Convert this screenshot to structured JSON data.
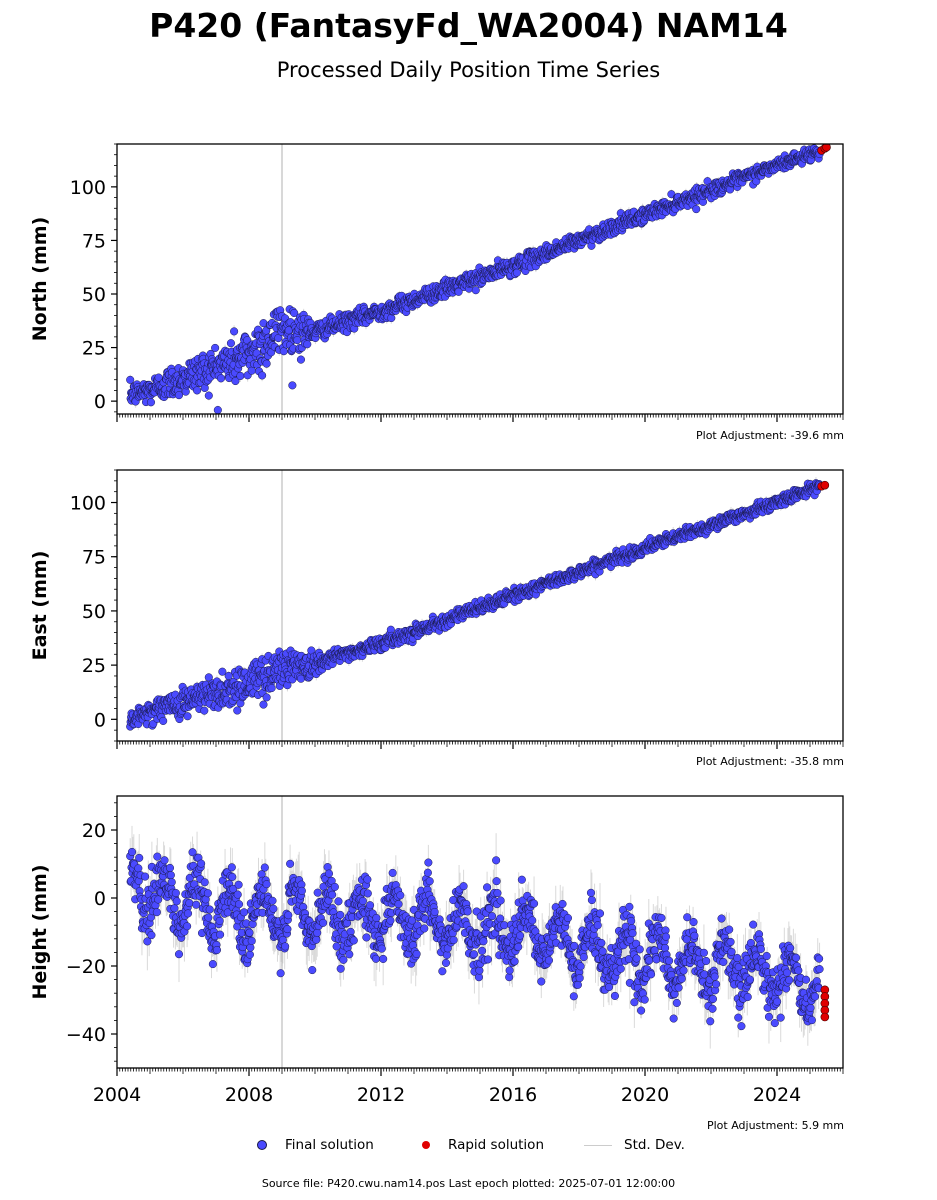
{
  "title": "P420 (FantasyFd_WA2004) NAM14",
  "subtitle": "Processed Daily Position Time Series",
  "source_line": "Source file: P420.cwu.nam14.pos  Last epoch plotted: 2025-07-01 12:00:00",
  "legend": {
    "final": "Final solution",
    "rapid": "Rapid solution",
    "stddev": "Std. Dev."
  },
  "colors": {
    "final": "#4a4aff",
    "rapid": "#e00000",
    "stddev": "#bbbbbb",
    "marker_edge": "#1a1a4a"
  },
  "chart_data": [
    {
      "type": "scatter",
      "ylabel": "North (mm)",
      "adjustment": "Plot Adjustment: -39.6 mm",
      "xlim": [
        2004.0,
        2026.0
      ],
      "ylim": [
        -6,
        120
      ],
      "yticks": [
        0,
        25,
        50,
        75,
        100
      ],
      "xticks": [
        2004,
        2008,
        2012,
        2016,
        2020,
        2024
      ],
      "vline": 2009.0,
      "final_series_anchors": [
        [
          2004.4,
          3
        ],
        [
          2005.0,
          5
        ],
        [
          2006.0,
          11
        ],
        [
          2007.0,
          16
        ],
        [
          2008.0,
          22
        ],
        [
          2009.0,
          34
        ],
        [
          2009.9,
          32
        ],
        [
          2012.0,
          42
        ],
        [
          2016.0,
          63
        ],
        [
          2020.0,
          87
        ],
        [
          2024.0,
          110
        ],
        [
          2025.3,
          117
        ]
      ],
      "final_scatter_sd": [
        [
          2004.4,
          2.5
        ],
        [
          2007.0,
          5
        ],
        [
          2008.5,
          7
        ],
        [
          2009.5,
          6
        ],
        [
          2010.0,
          2
        ],
        [
          2026.0,
          1.5
        ]
      ],
      "rapid_solution": [
        [
          2025.35,
          117
        ],
        [
          2025.45,
          118
        ],
        [
          2025.5,
          118.5
        ]
      ]
    },
    {
      "type": "scatter",
      "ylabel": "East (mm)",
      "adjustment": "Plot Adjustment: -35.8 mm",
      "xlim": [
        2004.0,
        2026.0
      ],
      "ylim": [
        -10,
        115
      ],
      "yticks": [
        0,
        25,
        50,
        75,
        100
      ],
      "xticks": [
        2004,
        2008,
        2012,
        2016,
        2020,
        2024
      ],
      "vline": 2009.0,
      "final_series_anchors": [
        [
          2004.4,
          -1
        ],
        [
          2005.0,
          4
        ],
        [
          2006.0,
          8
        ],
        [
          2007.0,
          12
        ],
        [
          2008.0,
          17
        ],
        [
          2009.0,
          24
        ],
        [
          2009.9,
          26
        ],
        [
          2012.0,
          35
        ],
        [
          2016.0,
          57
        ],
        [
          2020.0,
          79
        ],
        [
          2024.0,
          100
        ],
        [
          2025.3,
          108
        ]
      ],
      "final_scatter_sd": [
        [
          2004.4,
          1.5
        ],
        [
          2006.5,
          4
        ],
        [
          2008.5,
          5
        ],
        [
          2009.8,
          4
        ],
        [
          2010.3,
          1.5
        ],
        [
          2026.0,
          1.2
        ]
      ],
      "rapid_solution": [
        [
          2025.35,
          107.5
        ],
        [
          2025.45,
          108
        ]
      ]
    },
    {
      "type": "scatter",
      "ylabel": "Height (mm)",
      "adjustment": "Plot Adjustment: 5.9 mm",
      "xlim": [
        2004.0,
        2026.0
      ],
      "ylim": [
        -50,
        30
      ],
      "yticks": [
        20,
        0,
        -20,
        -40
      ],
      "xticks": [
        2004,
        2008,
        2012,
        2016,
        2020,
        2024
      ],
      "xticklabels": [
        "2004",
        "2008",
        "2012",
        "2016",
        "2020",
        "2024"
      ],
      "vline": 2009.0,
      "final_series_anchors": [
        [
          2004.4,
          3
        ],
        [
          2008.0,
          -5
        ],
        [
          2012.0,
          -5
        ],
        [
          2016.0,
          -10
        ],
        [
          2020.0,
          -18
        ],
        [
          2024.0,
          -22
        ],
        [
          2025.3,
          -28
        ]
      ],
      "seasonal_amplitude_mm": 7,
      "final_scatter_sd": [
        [
          2004.4,
          4
        ],
        [
          2026.0,
          4
        ]
      ],
      "rapid_solution": [
        [
          2025.45,
          -27
        ],
        [
          2025.45,
          -29
        ],
        [
          2025.45,
          -31
        ],
        [
          2025.45,
          -33
        ],
        [
          2025.45,
          -35
        ]
      ]
    }
  ]
}
